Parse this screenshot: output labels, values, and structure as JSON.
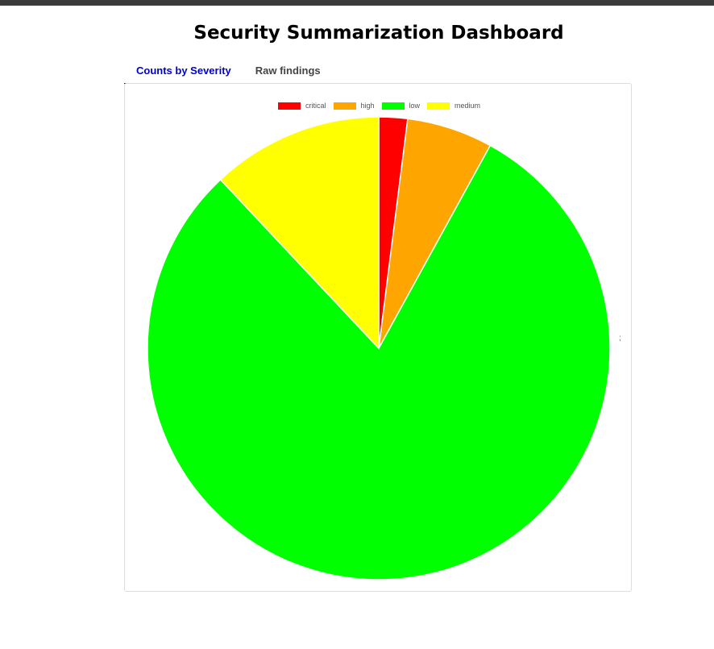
{
  "page": {
    "title": "Security Summarization Dashboard"
  },
  "tabs": [
    {
      "label": "Counts by Severity",
      "active": true
    },
    {
      "label": "Raw findings",
      "active": false
    }
  ],
  "chart_data": {
    "type": "pie",
    "categories": [
      "critical",
      "high",
      "low",
      "medium"
    ],
    "values": [
      2,
      6,
      80,
      12
    ],
    "colors": [
      "#ff0000",
      "#ffa500",
      "#00ff00",
      "#ffff00"
    ],
    "legend": "top",
    "annotation": ";"
  }
}
